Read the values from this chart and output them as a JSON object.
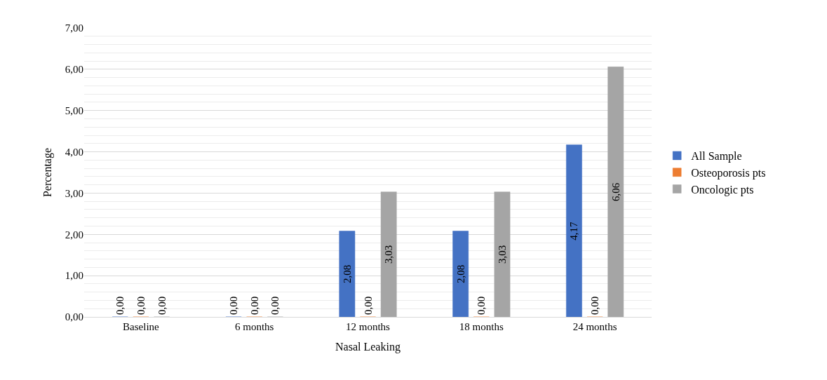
{
  "chart_data": {
    "type": "bar",
    "xlabel": "Nasal Leaking",
    "ylabel": "Percentage",
    "categories": [
      "Baseline",
      "6 months",
      "12 months",
      "18 months",
      "24 months"
    ],
    "series": [
      {
        "name": "All Sample",
        "color": "#4472c4",
        "values": [
          0,
          0,
          2.08,
          2.08,
          4.17
        ],
        "value_labels": [
          "0,00",
          "0,00",
          "2,08",
          "2,08",
          "4,17"
        ]
      },
      {
        "name": "Osteoporosis pts",
        "color": "#ed7d31",
        "values": [
          0,
          0,
          0,
          0,
          0
        ],
        "value_labels": [
          "0,00",
          "0,00",
          "0,00",
          "0,00",
          "0,00"
        ]
      },
      {
        "name": "Oncologic pts",
        "color": "#a5a5a5",
        "values": [
          0,
          0,
          3.03,
          3.03,
          6.06
        ],
        "value_labels": [
          "0,00",
          "0,00",
          "3,03",
          "3,03",
          "6,06"
        ]
      }
    ],
    "ylim": [
      0,
      7
    ],
    "yticks": [
      {
        "value": 0,
        "label": "0,00"
      },
      {
        "value": 1,
        "label": "1,00"
      },
      {
        "value": 2,
        "label": "2,00"
      },
      {
        "value": 3,
        "label": "3,00"
      },
      {
        "value": 4,
        "label": "4,00"
      },
      {
        "value": 5,
        "label": "5,00"
      },
      {
        "value": 6,
        "label": "6,00"
      },
      {
        "value": 7,
        "label": "7,00"
      }
    ],
    "grid": "y",
    "legend": "right"
  }
}
